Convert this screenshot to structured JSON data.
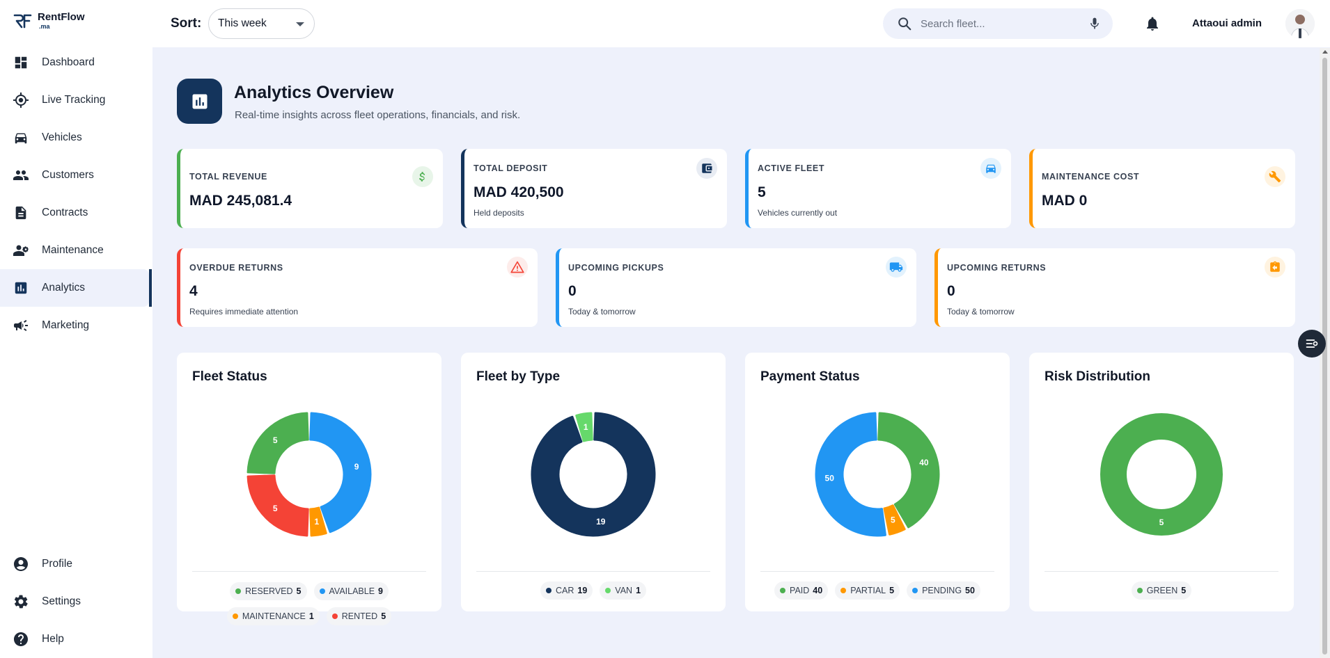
{
  "app": {
    "name": "RentFlow",
    "suffix": ".ma"
  },
  "sidebar": {
    "items": [
      {
        "label": "Dashboard",
        "icon": "dashboard-icon"
      },
      {
        "label": "Live Tracking",
        "icon": "gps-target-icon"
      },
      {
        "label": "Vehicles",
        "icon": "car-icon"
      },
      {
        "label": "Customers",
        "icon": "people-icon"
      },
      {
        "label": "Contracts",
        "icon": "document-icon"
      },
      {
        "label": "Maintenance",
        "icon": "engineer-icon"
      },
      {
        "label": "Analytics",
        "icon": "analytics-icon",
        "active": true
      },
      {
        "label": "Marketing",
        "icon": "megaphone-icon"
      }
    ],
    "bottom_items": [
      {
        "label": "Profile",
        "icon": "account-circle-icon"
      },
      {
        "label": "Settings",
        "icon": "gear-icon"
      },
      {
        "label": "Help",
        "icon": "help-icon"
      }
    ]
  },
  "topbar": {
    "sort_label": "Sort:",
    "sort_value": "This week",
    "search_placeholder": "Search fleet...",
    "user_name": "Attaoui admin"
  },
  "header": {
    "title": "Analytics Overview",
    "subtitle": "Real-time insights across fleet operations, financials, and risk."
  },
  "kpis_row1": [
    {
      "label": "TOTAL REVENUE",
      "value": "MAD 245,081.4",
      "note": "",
      "color": "#4caf50",
      "icon": "dollar-icon"
    },
    {
      "label": "TOTAL DEPOSIT",
      "value": "MAD 420,500",
      "note": "Held deposits",
      "color": "#14345c",
      "icon": "wallet-icon"
    },
    {
      "label": "ACTIVE FLEET",
      "value": "5",
      "note": "Vehicles currently out",
      "color": "#2196f3",
      "icon": "car-icon"
    },
    {
      "label": "MAINTENANCE COST",
      "value": "MAD 0",
      "note": "",
      "color": "#ff9800",
      "icon": "wrench-icon"
    }
  ],
  "kpis_row2": [
    {
      "label": "OVERDUE RETURNS",
      "value": "4",
      "note": "Requires immediate attention",
      "color": "#f44336",
      "icon": "warning-icon"
    },
    {
      "label": "UPCOMING PICKUPS",
      "value": "0",
      "note": "Today & tomorrow",
      "color": "#2196f3",
      "icon": "truck-icon"
    },
    {
      "label": "UPCOMING RETURNS",
      "value": "0",
      "note": "Today & tomorrow",
      "color": "#ff9800",
      "icon": "return-icon"
    }
  ],
  "chart_data": [
    {
      "type": "pie",
      "title": "Fleet Status",
      "slices": [
        {
          "name": "AVAILABLE",
          "value": 9,
          "color": "#2196f3"
        },
        {
          "name": "MAINTENANCE",
          "value": 1,
          "color": "#ff9800"
        },
        {
          "name": "RENTED",
          "value": 5,
          "color": "#f44336"
        },
        {
          "name": "RESERVED",
          "value": 5,
          "color": "#4caf50"
        }
      ],
      "legend": [
        {
          "name": "RESERVED",
          "value": 5,
          "color": "#4caf50"
        },
        {
          "name": "AVAILABLE",
          "value": 9,
          "color": "#2196f3"
        },
        {
          "name": "MAINTENANCE",
          "value": 1,
          "color": "#ff9800"
        },
        {
          "name": "RENTED",
          "value": 5,
          "color": "#f44336"
        }
      ]
    },
    {
      "type": "pie",
      "title": "Fleet by Type",
      "slices": [
        {
          "name": "CAR",
          "value": 19,
          "color": "#14345c"
        },
        {
          "name": "VAN",
          "value": 1,
          "color": "#66d96b"
        }
      ],
      "legend": [
        {
          "name": "CAR",
          "value": 19,
          "color": "#14345c"
        },
        {
          "name": "VAN",
          "value": 1,
          "color": "#66d96b"
        }
      ]
    },
    {
      "type": "pie",
      "title": "Payment Status",
      "slices": [
        {
          "name": "PAID",
          "value": 40,
          "color": "#4caf50"
        },
        {
          "name": "PARTIAL",
          "value": 5,
          "color": "#ff9800"
        },
        {
          "name": "PENDING",
          "value": 50,
          "color": "#2196f3"
        }
      ],
      "legend": [
        {
          "name": "PAID",
          "value": 40,
          "color": "#4caf50"
        },
        {
          "name": "PARTIAL",
          "value": 5,
          "color": "#ff9800"
        },
        {
          "name": "PENDING",
          "value": 50,
          "color": "#2196f3"
        }
      ]
    },
    {
      "type": "pie",
      "title": "Risk Distribution",
      "slices": [
        {
          "name": "GREEN",
          "value": 5,
          "color": "#4caf50"
        }
      ],
      "legend": [
        {
          "name": "GREEN",
          "value": 5,
          "color": "#4caf50"
        }
      ]
    }
  ]
}
